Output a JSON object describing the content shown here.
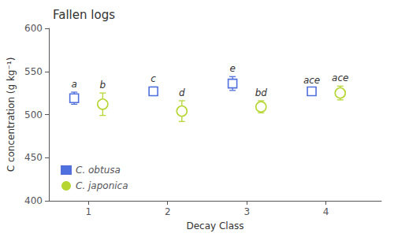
{
  "chart_data": {
    "type": "scatter",
    "title": "Fallen logs",
    "x_label": "Decay Class",
    "y_label": "C concentration (g kg⁻¹)",
    "x": [
      1,
      2,
      3,
      4
    ],
    "xlim": [
      0.5,
      4.7
    ],
    "xticks": [
      1,
      2,
      3,
      4
    ],
    "ylim": [
      400,
      600
    ],
    "yticks": [
      400,
      450,
      500,
      550,
      600
    ],
    "grid": false,
    "legend": "lower left",
    "series": [
      {
        "name": "C. obtusa",
        "marker": "square",
        "values": [
          519,
          527,
          536,
          527
        ],
        "errors": [
          7,
          5,
          8,
          4
        ],
        "labels": [
          "a",
          "c",
          "e",
          "ace"
        ]
      },
      {
        "name": "C. japonica",
        "marker": "circle",
        "values": [
          512,
          504,
          509,
          525
        ],
        "errors": [
          13,
          12,
          7,
          8
        ],
        "labels": [
          "b",
          "d",
          "bd",
          "ace"
        ]
      }
    ]
  }
}
